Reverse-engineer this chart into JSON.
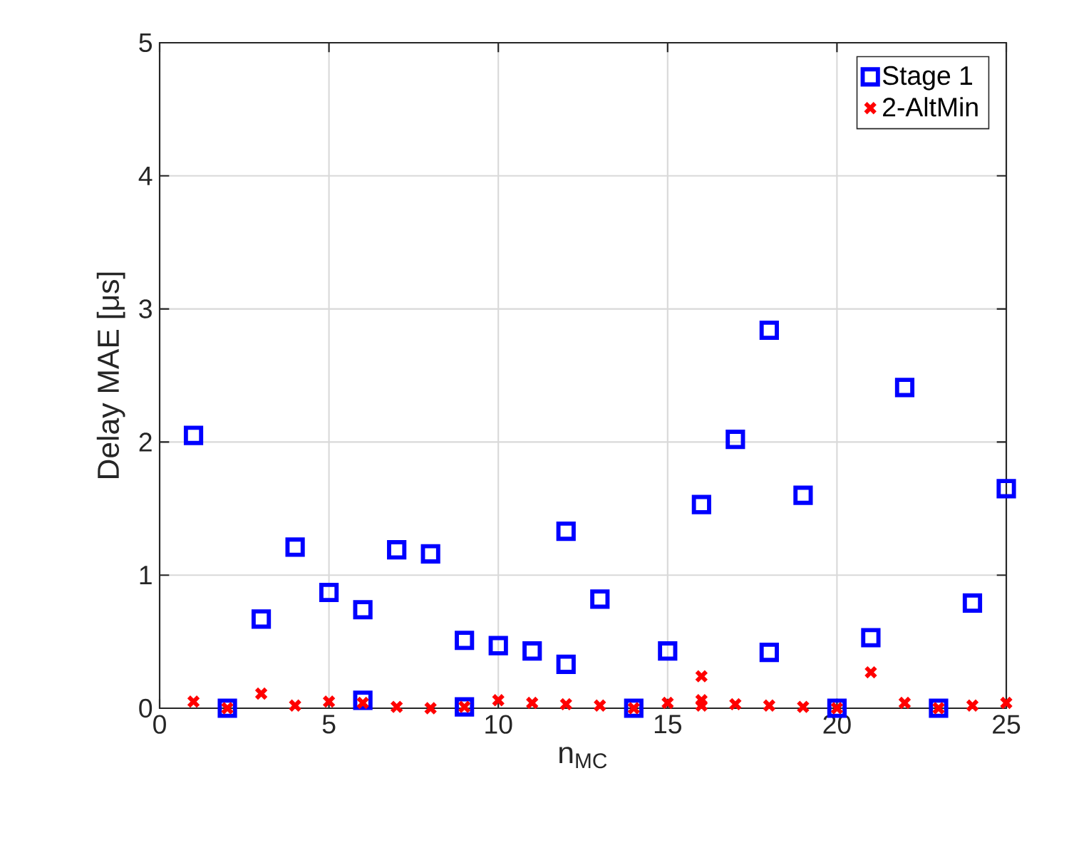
{
  "chart_data": {
    "type": "scatter",
    "xlabel": "n$_{MC}$",
    "ylabel": "Delay MAE [μs]",
    "xlim": [
      0,
      25
    ],
    "xticks": [
      0,
      5,
      10,
      15,
      20,
      25
    ],
    "ylim": [
      0,
      5
    ],
    "yticks": [
      0,
      1,
      2,
      3,
      4,
      5
    ],
    "grid": true,
    "legend": "top right",
    "series": [
      {
        "name": "Stage 1",
        "color": "#0000ff",
        "marker": "square",
        "x": [
          1,
          2,
          3,
          4,
          5,
          6,
          6,
          7,
          8,
          9,
          9,
          10,
          11,
          12,
          12,
          13,
          14,
          15,
          16,
          17,
          18,
          18,
          19,
          20,
          21,
          22,
          23,
          24,
          25
        ],
        "values": [
          2.05,
          0,
          0.67,
          1.21,
          0.87,
          0.74,
          0.06,
          1.19,
          1.16,
          0.51,
          0.01,
          0.47,
          0.43,
          1.33,
          0.33,
          0.82,
          0,
          0.43,
          1.53,
          2.02,
          2.84,
          0.42,
          1.6,
          0,
          0.53,
          2.41,
          0,
          0.79,
          1.65
        ]
      },
      {
        "name": "2-AltMin",
        "color": "#ff0000",
        "marker": "cross",
        "x": [
          1,
          2,
          3,
          4,
          5,
          6,
          7,
          8,
          9,
          10,
          11,
          12,
          13,
          14,
          15,
          16,
          16,
          16,
          17,
          18,
          19,
          20,
          21,
          22,
          23,
          24,
          25
        ],
        "values": [
          0.05,
          0,
          0.11,
          0.02,
          0.05,
          0.04,
          0.01,
          0,
          0.01,
          0.06,
          0.04,
          0.03,
          0.02,
          0,
          0.04,
          0.24,
          0.06,
          0.02,
          0.03,
          0.02,
          0.01,
          0,
          0.27,
          0.04,
          0,
          0.02,
          0.04
        ]
      }
    ]
  }
}
